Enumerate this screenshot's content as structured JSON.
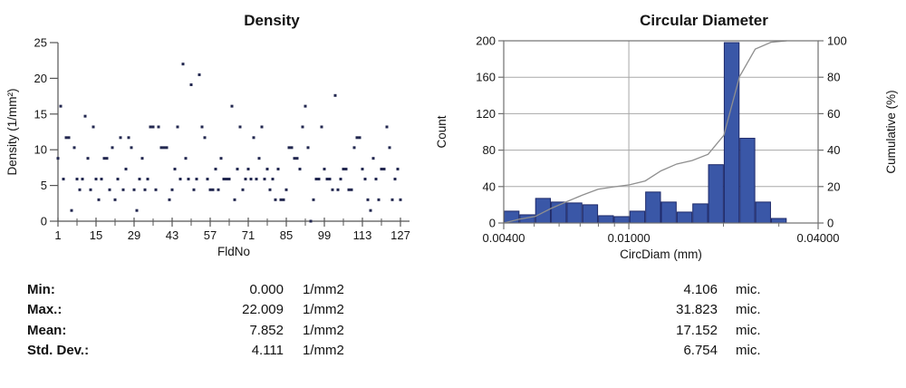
{
  "chart_data": [
    {
      "type": "scatter",
      "title": "Density",
      "xlabel": "FldNo",
      "ylabel": "Density (1/mm²)",
      "xlim": [
        1,
        130
      ],
      "ylim": [
        0,
        25
      ],
      "yticks": [
        0,
        5,
        10,
        15,
        20,
        25
      ],
      "xticks_major": [
        1,
        15,
        29,
        43,
        57,
        71,
        85,
        99,
        113,
        127
      ],
      "xticks_minor": [
        8,
        22,
        36,
        50,
        64,
        78,
        92,
        106,
        120
      ],
      "grid": false,
      "point_color": "#232850",
      "axis_color": "#555555",
      "x_start_field": 1,
      "values": [
        8.8,
        16.1,
        5.9,
        11.7,
        11.7,
        1.5,
        10.3,
        5.9,
        4.4,
        5.9,
        14.7,
        8.8,
        4.4,
        13.2,
        5.9,
        3.0,
        5.9,
        8.8,
        8.8,
        4.4,
        10.3,
        3.0,
        5.9,
        11.7,
        4.4,
        7.3,
        11.7,
        10.3,
        4.4,
        1.5,
        5.9,
        8.8,
        4.4,
        5.9,
        13.2,
        13.2,
        4.4,
        13.2,
        10.3,
        10.3,
        10.3,
        3.0,
        4.4,
        7.3,
        13.2,
        5.9,
        22.0,
        8.8,
        5.9,
        19.1,
        4.4,
        5.9,
        20.5,
        13.2,
        11.7,
        5.9,
        4.4,
        4.4,
        7.3,
        4.4,
        8.8,
        5.9,
        5.9,
        5.9,
        16.1,
        3.0,
        7.3,
        13.2,
        4.4,
        5.9,
        7.3,
        5.9,
        11.7,
        5.9,
        8.8,
        13.2,
        5.9,
        7.3,
        4.4,
        5.9,
        3.0,
        7.3,
        3.0,
        3.0,
        4.4,
        10.3,
        10.3,
        8.8,
        8.8,
        7.3,
        13.2,
        16.1,
        10.3,
        0.0,
        3.0,
        5.9,
        5.9,
        13.2,
        7.3,
        5.9,
        5.9,
        4.4,
        17.6,
        4.4,
        5.9,
        7.3,
        7.3,
        4.4,
        4.4,
        10.3,
        11.7,
        11.7,
        7.3,
        5.9,
        3.0,
        1.5,
        8.8,
        5.9,
        3.0,
        7.3,
        7.3,
        13.2,
        10.3,
        3.0,
        5.9,
        7.3,
        3.0
      ]
    },
    {
      "type": "bar",
      "title": "Circular Diameter",
      "xlabel": "CircDiam (mm)",
      "ylabel_left": "Count",
      "ylabel_right": "Cumulative (%)",
      "xscale": "log",
      "xlim": [
        0.004,
        0.04
      ],
      "xtick_major_values": [
        0.004,
        0.01,
        0.04
      ],
      "xtick_major_labels": [
        "0.00400",
        "0.01000",
        "0.04000"
      ],
      "xtick_minor_values": [
        0.005,
        0.006,
        0.007,
        0.008,
        0.009,
        0.02,
        0.03
      ],
      "ylim_left": [
        0,
        200
      ],
      "yticks_left": [
        0,
        40,
        80,
        120,
        160,
        200
      ],
      "ylim_right": [
        0,
        100
      ],
      "yticks_right": [
        0,
        20,
        40,
        60,
        80,
        100
      ],
      "grid": true,
      "gridline_y_counts": [
        40,
        80,
        120,
        160,
        200
      ],
      "gridline_x_values": [
        0.01
      ],
      "bin_start": 0.004,
      "bins_per_decade": 20,
      "counts": [
        13,
        9,
        27,
        23,
        22,
        20,
        8,
        7,
        13,
        34,
        23,
        12,
        21,
        64,
        198,
        93,
        23,
        5
      ],
      "legend": "none",
      "bar_fill": "#3a57a7",
      "bar_stroke": "#1e2a6a",
      "cumulative_color": "#8f8f8f",
      "grid_color": "#a8a8a8",
      "box_color": "#707070"
    }
  ],
  "stats": {
    "rows": [
      {
        "label": "Min:",
        "left_value": "0.000",
        "left_unit": "1/mm2",
        "right_value": "4.106",
        "right_unit": "mic."
      },
      {
        "label": "Max.:",
        "left_value": "22.009",
        "left_unit": "1/mm2",
        "right_value": "31.823",
        "right_unit": "mic."
      },
      {
        "label": "Mean:",
        "left_value": "7.852",
        "left_unit": "1/mm2",
        "right_value": "17.152",
        "right_unit": "mic."
      },
      {
        "label": "Std. Dev.:",
        "left_value": "4.111",
        "left_unit": "1/mm2",
        "right_value": "6.754",
        "right_unit": "mic."
      }
    ]
  }
}
